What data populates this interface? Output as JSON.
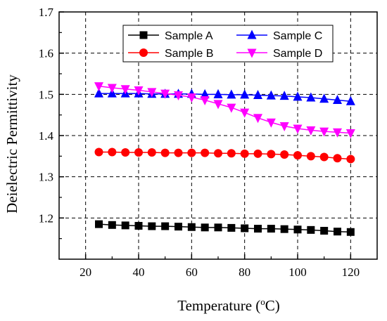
{
  "chart_data": {
    "type": "line",
    "title": "",
    "xlabel": "Temperature (",
    "xlabel_sup": "o",
    "xlabel_unit": "C)",
    "ylabel": "Deielectric Permittivity",
    "xlim": [
      10,
      130
    ],
    "ylim": [
      1.1,
      1.7
    ],
    "xticks": [
      20,
      40,
      60,
      80,
      100,
      120
    ],
    "yticks": [
      1.2,
      1.3,
      1.4,
      1.5,
      1.6,
      1.7
    ],
    "grid": true,
    "legend_position": "top-right",
    "x": [
      25,
      30,
      35,
      40,
      45,
      50,
      55,
      60,
      65,
      70,
      75,
      80,
      85,
      90,
      95,
      100,
      105,
      110,
      115,
      120
    ],
    "series": [
      {
        "name": "Sample A",
        "color": "#000000",
        "marker": "square",
        "values": [
          1.185,
          1.183,
          1.182,
          1.181,
          1.18,
          1.18,
          1.179,
          1.178,
          1.177,
          1.177,
          1.176,
          1.175,
          1.174,
          1.174,
          1.173,
          1.172,
          1.171,
          1.169,
          1.167,
          1.166
        ]
      },
      {
        "name": "Sample B",
        "color": "#ff0000",
        "marker": "circle",
        "values": [
          1.36,
          1.36,
          1.359,
          1.359,
          1.359,
          1.358,
          1.358,
          1.358,
          1.358,
          1.357,
          1.357,
          1.356,
          1.356,
          1.355,
          1.354,
          1.352,
          1.35,
          1.348,
          1.345,
          1.343
        ]
      },
      {
        "name": "Sample C",
        "color": "#0000ff",
        "marker": "triangle-up",
        "values": [
          1.502,
          1.502,
          1.502,
          1.502,
          1.501,
          1.501,
          1.501,
          1.501,
          1.5,
          1.5,
          1.499,
          1.499,
          1.498,
          1.497,
          1.496,
          1.494,
          1.492,
          1.489,
          1.486,
          1.483
        ]
      },
      {
        "name": "Sample D",
        "color": "#ff00ff",
        "marker": "triangle-down",
        "values": [
          1.52,
          1.516,
          1.513,
          1.51,
          1.506,
          1.502,
          1.498,
          1.493,
          1.486,
          1.477,
          1.468,
          1.456,
          1.443,
          1.432,
          1.423,
          1.417,
          1.413,
          1.41,
          1.408,
          1.406
        ]
      }
    ]
  }
}
